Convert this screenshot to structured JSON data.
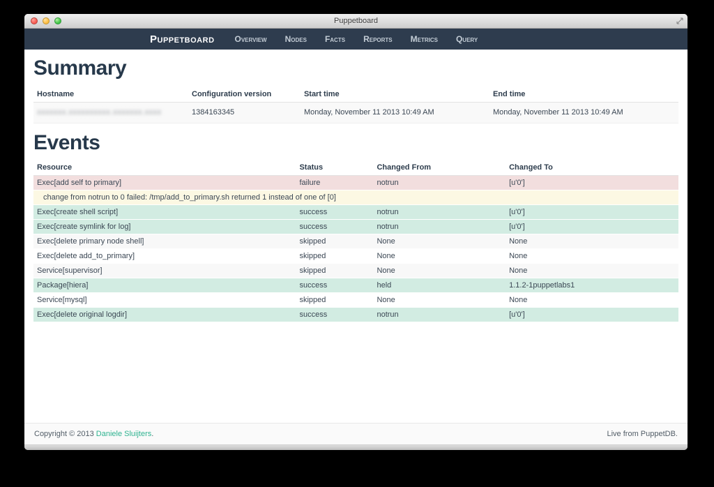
{
  "window": {
    "title": "Puppetboard"
  },
  "navbar": {
    "brand": "Puppetboard",
    "items": [
      "Overview",
      "Nodes",
      "Facts",
      "Reports",
      "Metrics",
      "Query"
    ]
  },
  "summary": {
    "heading": "Summary",
    "columns": [
      "Hostname",
      "Configuration version",
      "Start time",
      "End time"
    ],
    "row": {
      "hostname_redacted": "xxxxxxx.xxxxxxxxxx.xxxxxxx.xxxx",
      "configuration_version": "1384163345",
      "start_time": "Monday, November 11 2013 10:49 AM",
      "end_time": "Monday, November 11 2013 10:49 AM"
    }
  },
  "events": {
    "heading": "Events",
    "columns": [
      "Resource",
      "Status",
      "Changed From",
      "Changed To"
    ],
    "rows": [
      {
        "resource": "Exec[add self to primary]",
        "status": "failure",
        "changed_from": "notrun",
        "changed_to": "[u'0']"
      },
      {
        "message": "change from notrun to 0 failed: /tmp/add_to_primary.sh returned 1 instead of one of [0]"
      },
      {
        "resource": "Exec[create shell script]",
        "status": "success",
        "changed_from": "notrun",
        "changed_to": "[u'0']"
      },
      {
        "resource": "Exec[create symlink for log]",
        "status": "success",
        "changed_from": "notrun",
        "changed_to": "[u'0']"
      },
      {
        "resource": "Exec[delete primary node shell]",
        "status": "skipped",
        "changed_from": "None",
        "changed_to": "None"
      },
      {
        "resource": "Exec[delete add_to_primary]",
        "status": "skipped",
        "changed_from": "None",
        "changed_to": "None"
      },
      {
        "resource": "Service[supervisor]",
        "status": "skipped",
        "changed_from": "None",
        "changed_to": "None"
      },
      {
        "resource": "Package[hiera]",
        "status": "success",
        "changed_from": "held",
        "changed_to": "1.1.2-1puppetlabs1"
      },
      {
        "resource": "Service[mysql]",
        "status": "skipped",
        "changed_from": "None",
        "changed_to": "None"
      },
      {
        "resource": "Exec[delete original logdir]",
        "status": "success",
        "changed_from": "notrun",
        "changed_to": "[u'0']"
      }
    ]
  },
  "footer": {
    "copyright_text": "Copyright © 2013",
    "author_link": "Daniele Sluijters",
    "suffix": ".",
    "status": "Live from PuppetDB."
  },
  "colors": {
    "navbar_bg": "#2e3c4e",
    "heading": "#27394b",
    "failure_row_bg": "#f2dede",
    "message_row_bg": "#fcf8e3",
    "success_row_bg": "#d2ece2",
    "striped_row_bg": "#f8f8f8",
    "link": "#2fb390"
  }
}
